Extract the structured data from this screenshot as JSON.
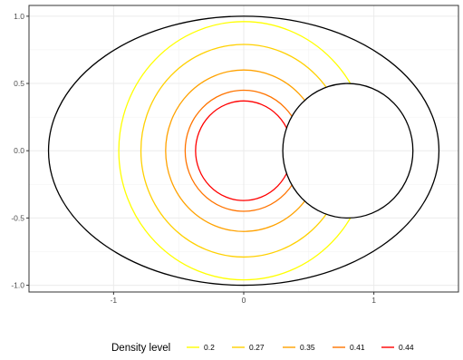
{
  "chart_data": {
    "type": "line",
    "title": "",
    "xlabel": "",
    "ylabel": "",
    "xlim": [
      -1.65,
      1.65
    ],
    "ylim": [
      -1.05,
      1.08
    ],
    "x_ticks": [
      -1,
      0,
      1
    ],
    "x_tick_labels": [
      "-1",
      "0",
      "1"
    ],
    "y_ticks": [
      -1.0,
      -0.5,
      0.0,
      0.5,
      1.0
    ],
    "y_tick_labels": [
      "-1.0",
      "-0.5",
      "0.0",
      "0.5",
      "1.0"
    ],
    "grid": true,
    "legend_position": "bottom",
    "legend_title": "Density level",
    "outline_ellipse": {
      "cx": 0,
      "cy": 0,
      "rx": 1.5,
      "ry": 1.0,
      "color": "#000000"
    },
    "hole_circle": {
      "cx": 0.8,
      "cy": 0,
      "r": 0.5,
      "color": "#000000"
    },
    "series": [
      {
        "name": "0.2",
        "radius": 0.96,
        "color": "#FFFF00"
      },
      {
        "name": "0.27",
        "radius": 0.79,
        "color": "#FFD000"
      },
      {
        "name": "0.35",
        "radius": 0.6,
        "color": "#FFA200"
      },
      {
        "name": "0.41",
        "radius": 0.45,
        "color": "#FF7400"
      },
      {
        "name": "0.44",
        "radius": 0.37,
        "color": "#FF0000"
      }
    ]
  }
}
